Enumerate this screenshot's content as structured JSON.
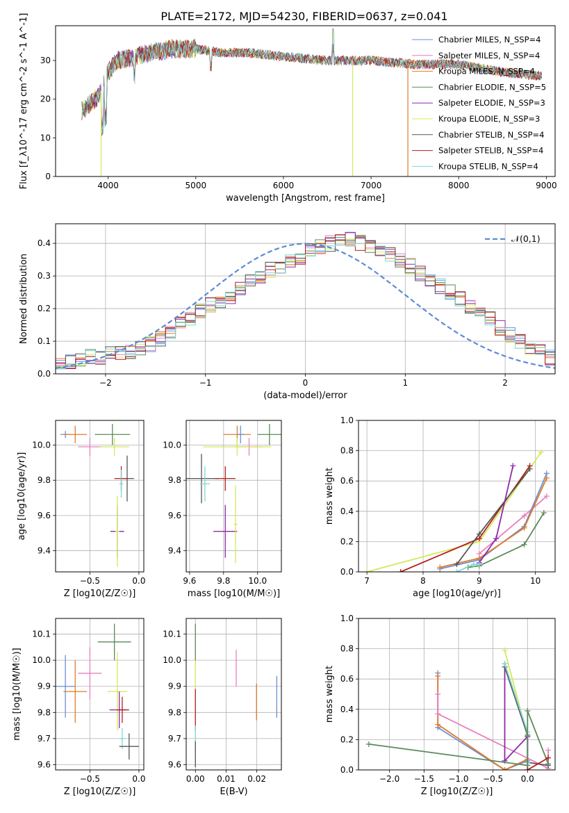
{
  "figure": {
    "title": "PLATE=2172, MJD=54230, FIBERID=0637, z=0.041"
  },
  "series_colors": {
    "Chabrier MILES": "#6b8fd6",
    "Salpeter MILES": "#e87fbf",
    "Kroupa MILES": "#e07b28",
    "Chabrier ELODIE": "#5a8a5a",
    "Salpeter ELODIE": "#8e2aa8",
    "Kroupa ELODIE": "#d4e85a",
    "Chabrier STELIB": "#555555",
    "Salpeter STELIB": "#b01f1f",
    "Kroupa STELIB": "#7fd6d6"
  },
  "chart_data": [
    {
      "id": "spectrum",
      "type": "line",
      "xlabel": "wavelength [Angstrom, rest frame]",
      "ylabel": "Flux [f_λ10^-17 erg cm^-2 s^-1 A^-1]",
      "xlim": [
        3400,
        9100
      ],
      "ylim": [
        0,
        39
      ],
      "xticks": [
        4000,
        5000,
        6000,
        7000,
        8000,
        9000
      ],
      "yticks": [
        0,
        10,
        20,
        30
      ],
      "legend_position": "top-right",
      "legend": [
        "Chabrier MILES, N_SSP=4",
        "Salpeter MILES, N_SSP=4",
        "Kroupa MILES, N_SSP=4",
        "Chabrier ELODIE, N_SSP=5",
        "Salpeter ELODIE, N_SSP=3",
        "Kroupa ELODIE, N_SSP=3",
        "Chabrier STELIB, N_SSP=4",
        "Salpeter STELIB, N_SSP=4",
        "Kroupa STELIB, N_SSP=4"
      ],
      "continuum": {
        "x": [
          3700,
          3800,
          3900,
          4000,
          4100,
          4300,
          4500,
          4700,
          5000,
          5300,
          5600,
          6000,
          6500,
          7000,
          7500,
          8000,
          8500,
          8950
        ],
        "y": [
          17,
          19,
          21,
          27,
          30,
          31,
          32,
          33,
          33,
          32,
          32,
          31,
          30,
          30,
          29,
          29,
          27,
          26
        ]
      },
      "drops": [
        {
          "series": "Kroupa ELODIE",
          "x": 6790
        },
        {
          "series": "Kroupa MILES",
          "x": 7420
        },
        {
          "series": "Kroupa ELODIE",
          "x": 3920
        }
      ]
    },
    {
      "id": "residuals",
      "type": "bar",
      "xlabel": "(data-model)/error",
      "ylabel": "Normed distribution",
      "xlim": [
        -2.5,
        2.5
      ],
      "ylim": [
        0,
        0.46
      ],
      "xticks": [
        -2,
        -1,
        0,
        1,
        2
      ],
      "yticks": [
        0.0,
        0.1,
        0.2,
        0.3,
        0.4
      ],
      "legend_position": "top-right",
      "legend": [
        "𝒩(0,1)"
      ],
      "bin_width": 0.1,
      "bin_start": -2.5,
      "histogram": [
        0.03,
        0.04,
        0.04,
        0.05,
        0.05,
        0.06,
        0.06,
        0.07,
        0.08,
        0.09,
        0.11,
        0.13,
        0.15,
        0.17,
        0.19,
        0.21,
        0.22,
        0.24,
        0.26,
        0.28,
        0.3,
        0.32,
        0.33,
        0.34,
        0.36,
        0.38,
        0.39,
        0.4,
        0.41,
        0.41,
        0.4,
        0.39,
        0.38,
        0.37,
        0.35,
        0.33,
        0.31,
        0.29,
        0.27,
        0.25,
        0.23,
        0.21,
        0.19,
        0.17,
        0.14,
        0.12,
        0.1,
        0.08,
        0.07,
        0.05
      ],
      "gaussian": {
        "mean": 0,
        "sigma": 1
      }
    },
    {
      "id": "age-vs-Z",
      "type": "scatter",
      "xlabel": "Z [log10(Z/Z☉)]",
      "ylabel": "age  [log10(age/yr)]",
      "xlim": [
        -0.85,
        0.05
      ],
      "ylim": [
        9.28,
        10.14
      ],
      "xticks": [
        -0.5,
        0.0
      ],
      "yticks": [
        9.4,
        9.6,
        9.8,
        10.0
      ],
      "points": [
        {
          "series": "Chabrier MILES",
          "x": -0.75,
          "y": 10.06,
          "xerr": 0.05,
          "yerr": 0.02
        },
        {
          "series": "Kroupa MILES",
          "x": -0.65,
          "y": 10.06,
          "xerr": 0.12,
          "yerr": 0.05
        },
        {
          "series": "Salpeter MILES",
          "x": -0.5,
          "y": 9.99,
          "xerr": 0.12,
          "yerr": 0.05
        },
        {
          "series": "Chabrier ELODIE",
          "x": -0.27,
          "y": 10.06,
          "xerr": 0.18,
          "yerr": 0.06
        },
        {
          "series": "Kroupa ELODIE",
          "x": -0.25,
          "y": 9.99,
          "xerr": 0.15,
          "yerr": 0.05
        },
        {
          "series": "Chabrier STELIB",
          "x": -0.12,
          "y": 9.81,
          "xerr": 0.07,
          "yerr": 0.13
        },
        {
          "series": "Salpeter STELIB",
          "x": -0.18,
          "y": 9.81,
          "xerr": 0.07,
          "yerr": 0.07
        },
        {
          "series": "Salpeter ELODIE",
          "x": -0.22,
          "y": 9.51,
          "xerr": 0.07,
          "yerr": 0.15
        },
        {
          "series": "Kroupa STELIB",
          "x": -0.18,
          "y": 9.78,
          "xerr": 0.02,
          "yerr": 0.08
        },
        {
          "series": "Kroupa ELODIE",
          "x": -0.22,
          "y": 9.51,
          "xerr": 0.02,
          "yerr": 0.2
        }
      ]
    },
    {
      "id": "age-vs-mass",
      "type": "scatter",
      "xlabel": "mass [log10(M/M☉)]",
      "ylabel": "",
      "xlim": [
        9.58,
        10.14
      ],
      "ylim": [
        9.28,
        10.14
      ],
      "xticks": [
        9.6,
        9.8,
        10.0
      ],
      "yticks": [
        9.4,
        9.6,
        9.8,
        10.0
      ],
      "points": [
        {
          "series": "Chabrier ELODIE",
          "x": 10.07,
          "y": 10.06,
          "xerr": 0.07,
          "yerr": 0.06
        },
        {
          "series": "Kroupa MILES",
          "x": 9.88,
          "y": 10.06,
          "xerr": 0.08,
          "yerr": 0.05
        },
        {
          "series": "Salpeter MILES",
          "x": 9.95,
          "y": 9.99,
          "xerr": 0.08,
          "yerr": 0.05
        },
        {
          "series": "Kroupa ELODIE",
          "x": 9.88,
          "y": 9.99,
          "xerr": 0.2,
          "yerr": 0.05
        },
        {
          "series": "Chabrier MILES",
          "x": 9.9,
          "y": 10.06,
          "xerr": 0.02,
          "yerr": 0.05
        },
        {
          "series": "Chabrier STELIB",
          "x": 9.67,
          "y": 9.81,
          "xerr": 0.1,
          "yerr": 0.14
        },
        {
          "series": "Salpeter STELIB",
          "x": 9.81,
          "y": 9.81,
          "xerr": 0.06,
          "yerr": 0.07
        },
        {
          "series": "Kroupa STELIB",
          "x": 9.69,
          "y": 9.78,
          "xerr": 0.03,
          "yerr": 0.1
        },
        {
          "series": "Salpeter ELODIE",
          "x": 9.81,
          "y": 9.51,
          "xerr": 0.07,
          "yerr": 0.15
        },
        {
          "series": "Kroupa ELODIE",
          "x": 9.87,
          "y": 9.55,
          "xerr": 0.01,
          "yerr": 0.22
        }
      ]
    },
    {
      "id": "massweight-vs-age",
      "type": "line",
      "xlabel": "age  [log10(age/yr)]",
      "ylabel": "mass weight",
      "xlim": [
        6.85,
        10.35
      ],
      "ylim": [
        0,
        1.0
      ],
      "xticks": [
        7,
        8,
        9,
        10
      ],
      "yticks": [
        0.0,
        0.2,
        0.4,
        0.6,
        0.8,
        1.0
      ],
      "series": [
        {
          "name": "Kroupa ELODIE",
          "x": [
            7.0,
            9.0,
            10.1
          ],
          "y": [
            0.0,
            0.2,
            0.79
          ]
        },
        {
          "name": "Salpeter MILES",
          "x": [
            9.0,
            9.8,
            10.2
          ],
          "y": [
            0.12,
            0.37,
            0.5
          ]
        },
        {
          "name": "Chabrier MILES",
          "x": [
            8.3,
            9.0,
            9.8,
            10.2
          ],
          "y": [
            0.02,
            0.08,
            0.3,
            0.65
          ]
        },
        {
          "name": "Kroupa MILES",
          "x": [
            8.3,
            9.0,
            9.8,
            10.2
          ],
          "y": [
            0.03,
            0.09,
            0.29,
            0.62
          ]
        },
        {
          "name": "Salpeter STELIB",
          "x": [
            7.6,
            9.0,
            9.9
          ],
          "y": [
            0.0,
            0.22,
            0.7
          ]
        },
        {
          "name": "Chabrier STELIB",
          "x": [
            8.6,
            9.0,
            9.9
          ],
          "y": [
            0.05,
            0.25,
            0.68
          ]
        },
        {
          "name": "Salpeter ELODIE",
          "x": [
            9.0,
            9.3,
            9.6
          ],
          "y": [
            0.06,
            0.22,
            0.7
          ]
        },
        {
          "name": "Chabrier ELODIE",
          "x": [
            8.8,
            9.0,
            9.8,
            10.15
          ],
          "y": [
            0.03,
            0.04,
            0.18,
            0.39
          ]
        },
        {
          "name": "Kroupa STELIB",
          "x": [
            8.6,
            8.9,
            9.0
          ],
          "y": [
            0.0,
            0.05,
            0.05
          ]
        }
      ]
    },
    {
      "id": "mass-vs-Z",
      "type": "scatter",
      "xlabel": "Z [log10(Z/Z☉)]",
      "ylabel": "mass [log10(M/M☉)]",
      "xlim": [
        -0.85,
        0.05
      ],
      "ylim": [
        9.58,
        10.16
      ],
      "xticks": [
        -0.5,
        0.0
      ],
      "yticks": [
        9.6,
        9.7,
        9.8,
        9.9,
        10.0,
        10.1
      ],
      "points": [
        {
          "series": "Chabrier ELODIE",
          "x": -0.25,
          "y": 10.07,
          "xerr": 0.17,
          "yerr": 0.07
        },
        {
          "series": "Salpeter MILES",
          "x": -0.5,
          "y": 9.95,
          "xerr": 0.12,
          "yerr": 0.1
        },
        {
          "series": "Chabrier MILES",
          "x": -0.75,
          "y": 9.9,
          "xerr": 0.1,
          "yerr": 0.12
        },
        {
          "series": "Kroupa MILES",
          "x": -0.65,
          "y": 9.88,
          "xerr": 0.12,
          "yerr": 0.12
        },
        {
          "series": "Kroupa ELODIE",
          "x": -0.22,
          "y": 9.88,
          "xerr": 0.1,
          "yerr": 0.15
        },
        {
          "series": "Salpeter ELODIE",
          "x": -0.2,
          "y": 9.81,
          "xerr": 0.1,
          "yerr": 0.07
        },
        {
          "series": "Salpeter STELIB",
          "x": -0.17,
          "y": 9.81,
          "xerr": 0.05,
          "yerr": 0.05
        },
        {
          "series": "Kroupa STELIB",
          "x": -0.17,
          "y": 9.7,
          "xerr": 0.03,
          "yerr": 0.04
        },
        {
          "series": "Chabrier STELIB",
          "x": -0.1,
          "y": 9.67,
          "xerr": 0.1,
          "yerr": 0.05
        }
      ]
    },
    {
      "id": "mass-vs-EBV",
      "type": "scatter",
      "xlabel": "E(B-V)",
      "ylabel": "",
      "xlim": [
        -0.003,
        0.028
      ],
      "ylim": [
        9.58,
        10.16
      ],
      "xticks": [
        0.0,
        0.01,
        0.02
      ],
      "yticks": [
        9.6,
        9.7,
        9.8,
        9.9,
        10.0,
        10.1
      ],
      "points": [
        {
          "series": "Chabrier ELODIE",
          "x": 0.0,
          "y": 10.07,
          "yerr": 0.07
        },
        {
          "series": "Kroupa ELODIE",
          "x": 0.0,
          "y": 9.88,
          "yerr": 0.12
        },
        {
          "series": "Salpeter STELIB",
          "x": 0.0,
          "y": 9.81,
          "yerr": 0.08
        },
        {
          "series": "Kroupa STELIB",
          "x": 0.0,
          "y": 9.7,
          "yerr": 0.05
        },
        {
          "series": "Chabrier STELIB",
          "x": 0.0,
          "y": 9.64,
          "yerr": 0.05
        },
        {
          "series": "Salpeter MILES",
          "x": 0.0133,
          "y": 9.97,
          "yerr": 0.07
        },
        {
          "series": "Kroupa MILES",
          "x": 0.0199,
          "y": 9.84,
          "yerr": 0.07
        },
        {
          "series": "Chabrier MILES",
          "x": 0.0265,
          "y": 9.86,
          "yerr": 0.08
        }
      ]
    },
    {
      "id": "massweight-vs-Z",
      "type": "line",
      "xlabel": "Z [log10(Z/Z☉)]",
      "ylabel": "mass weight",
      "xlim": [
        -2.45,
        0.4
      ],
      "ylim": [
        0,
        1.0
      ],
      "xticks": [
        -2.0,
        -1.5,
        -1.0,
        -0.5,
        0.0
      ],
      "yticks": [
        0.0,
        0.2,
        0.4,
        0.6,
        0.8,
        1.0
      ],
      "series": [
        {
          "name": "Chabrier MILES",
          "x": [
            -1.3,
            -1.3,
            -0.33,
            0.0
          ],
          "y": [
            0.64,
            0.28,
            0.0,
            0.06
          ]
        },
        {
          "name": "Kroupa MILES",
          "x": [
            -1.3,
            -1.3,
            -0.33,
            0.0
          ],
          "y": [
            0.62,
            0.3,
            0.0,
            0.07
          ]
        },
        {
          "name": "Salpeter MILES",
          "x": [
            -1.3,
            -1.3,
            0.3,
            0.3
          ],
          "y": [
            0.5,
            0.37,
            0.01,
            0.13
          ]
        },
        {
          "name": "Kroupa ELODIE",
          "x": [
            -0.33,
            0.0,
            0.0
          ],
          "y": [
            0.79,
            0.22,
            0.0
          ]
        },
        {
          "name": "Salpeter ELODIE",
          "x": [
            -0.33,
            -0.33,
            0.0,
            0.0
          ],
          "y": [
            0.7,
            0.06,
            0.22,
            0.0
          ]
        },
        {
          "name": "Chabrier STELIB",
          "x": [
            -0.33,
            0.0,
            0.0,
            0.3
          ],
          "y": [
            0.68,
            0.23,
            0.05,
            0.03
          ]
        },
        {
          "name": "Kroupa STELIB",
          "x": [
            -0.33,
            0.0,
            0.0
          ],
          "y": [
            0.7,
            0.25,
            0.05
          ]
        },
        {
          "name": "Chabrier ELODIE",
          "x": [
            -2.3,
            0.0,
            0.0,
            0.3
          ],
          "y": [
            0.17,
            0.03,
            0.39,
            0.04
          ]
        },
        {
          "name": "Salpeter STELIB",
          "x": [
            0.0,
            0.3
          ],
          "y": [
            0.0,
            0.08
          ]
        }
      ]
    }
  ]
}
